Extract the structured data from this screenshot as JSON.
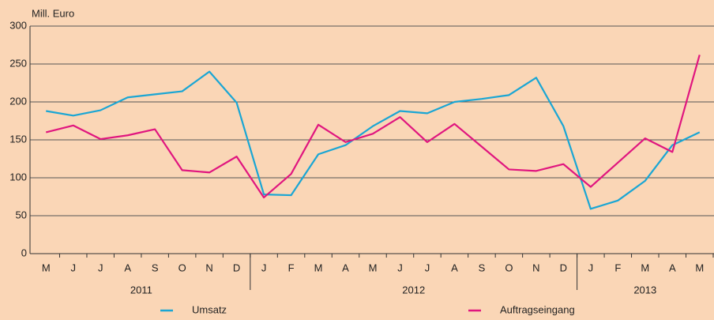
{
  "chart_data": {
    "type": "line",
    "y_label": "Mill. Euro",
    "groups": [
      {
        "name": "2011",
        "categories": [
          "M",
          "J",
          "J",
          "A",
          "S",
          "O",
          "N",
          "D"
        ]
      },
      {
        "name": "2012",
        "categories": [
          "J",
          "F",
          "M",
          "A",
          "M",
          "J",
          "J",
          "A",
          "S",
          "O",
          "N",
          "D"
        ]
      },
      {
        "name": "2013",
        "categories": [
          "J",
          "F",
          "M",
          "A",
          "M"
        ]
      }
    ],
    "series": [
      {
        "name": "Umsatz",
        "color": "#1aa6d4",
        "values": [
          188,
          182,
          189,
          206,
          210,
          214,
          240,
          199,
          78,
          77,
          131,
          143,
          168,
          188,
          185,
          200,
          204,
          209,
          232,
          168,
          59,
          70,
          96,
          143,
          160
        ]
      },
      {
        "name": "Auftragseingang",
        "color": "#e0167f",
        "values": [
          160,
          169,
          151,
          156,
          164,
          110,
          107,
          128,
          74,
          105,
          170,
          147,
          158,
          180,
          147,
          171,
          141,
          111,
          109,
          118,
          88,
          120,
          152,
          134,
          262
        ]
      }
    ],
    "ylim": [
      0,
      300
    ],
    "yticks": [
      0,
      50,
      100,
      150,
      200,
      250,
      300
    ],
    "grid": true
  }
}
